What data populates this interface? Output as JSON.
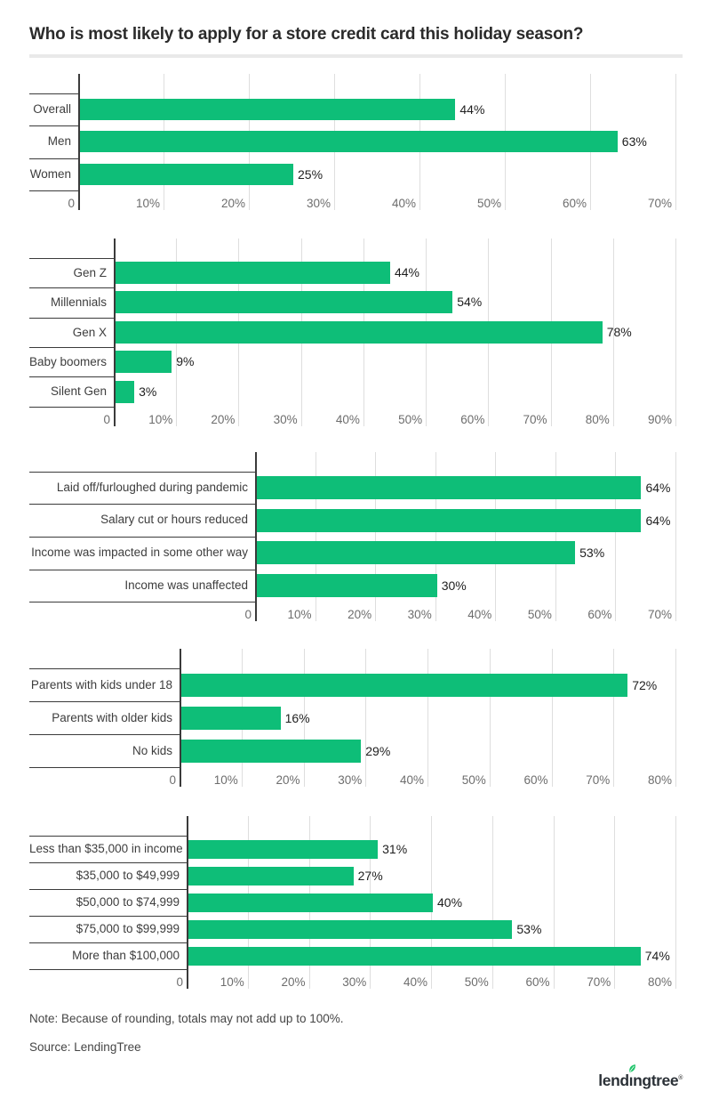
{
  "page": {
    "title": "Who is most likely to apply for a store credit card this holiday season?",
    "note": "Note: Because of rounding, totals may not add up to 100%.",
    "source": "Source: LendingTree",
    "logo": {
      "pre": "lend",
      "i": "ı",
      "post": "ngtree",
      "reg": "®"
    },
    "colors": {
      "bar": "#0ebe78",
      "axis": "#3b3b3b",
      "grid": "#dedede",
      "leaf": "#1fc46a",
      "tick_text": "#6d6d6d",
      "label_text": "#3d3d3d",
      "title_text": "#2b2b2b"
    }
  },
  "chart_data": [
    {
      "type": "bar",
      "orientation": "horizontal",
      "categories": [
        "Overall",
        "Men",
        "Women"
      ],
      "values": [
        44,
        63,
        25
      ],
      "unit": "%",
      "xlim": [
        0,
        70
      ],
      "tick_step": 10,
      "tick_labels": [
        "0",
        "10%",
        "20%",
        "30%",
        "40%",
        "50%",
        "60%",
        "70%"
      ],
      "grid": true,
      "legend": "none"
    },
    {
      "type": "bar",
      "orientation": "horizontal",
      "categories": [
        "Gen Z",
        "Millennials",
        "Gen X",
        "Baby boomers",
        "Silent Gen"
      ],
      "values": [
        44,
        54,
        78,
        9,
        3
      ],
      "unit": "%",
      "xlim": [
        0,
        90
      ],
      "tick_step": 10,
      "tick_labels": [
        "0",
        "10%",
        "20%",
        "30%",
        "40%",
        "50%",
        "60%",
        "70%",
        "80%",
        "90%"
      ],
      "grid": true,
      "legend": "none"
    },
    {
      "type": "bar",
      "orientation": "horizontal",
      "categories": [
        "Laid off/furloughed during pandemic",
        "Salary cut or hours reduced",
        "Income was impacted in some other way",
        "Income was unaffected"
      ],
      "values": [
        64,
        64,
        53,
        30
      ],
      "unit": "%",
      "xlim": [
        0,
        70
      ],
      "tick_step": 10,
      "tick_labels": [
        "0",
        "10%",
        "20%",
        "30%",
        "40%",
        "50%",
        "60%",
        "70%"
      ],
      "grid": true,
      "legend": "none"
    },
    {
      "type": "bar",
      "orientation": "horizontal",
      "categories": [
        "Parents with kids under 18",
        "Parents with older kids",
        "No kids"
      ],
      "values": [
        72,
        16,
        29
      ],
      "unit": "%",
      "xlim": [
        0,
        80
      ],
      "tick_step": 10,
      "tick_labels": [
        "0",
        "10%",
        "20%",
        "30%",
        "40%",
        "50%",
        "60%",
        "70%",
        "80%"
      ],
      "grid": true,
      "legend": "none"
    },
    {
      "type": "bar",
      "orientation": "horizontal",
      "categories": [
        "Less than $35,000 in income",
        "$35,000 to $49,999",
        "$50,000 to $74,999",
        "$75,000 to $99,999",
        "More than $100,000"
      ],
      "values": [
        31,
        27,
        40,
        53,
        74
      ],
      "unit": "%",
      "xlim": [
        0,
        80
      ],
      "tick_step": 10,
      "tick_labels": [
        "0",
        "10%",
        "20%",
        "30%",
        "40%",
        "50%",
        "60%",
        "70%",
        "80%"
      ],
      "grid": true,
      "legend": "none"
    }
  ]
}
